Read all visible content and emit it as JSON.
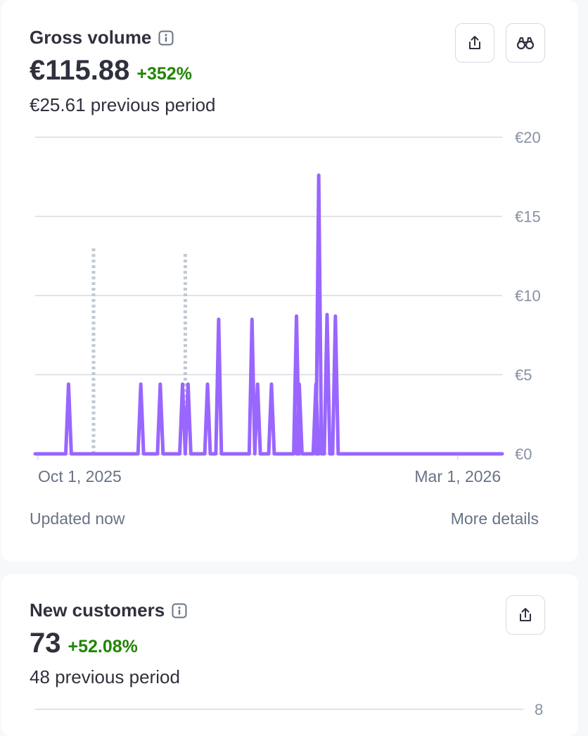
{
  "gross_volume": {
    "title": "Gross volume",
    "value": "€115.88",
    "delta": "+352%",
    "previous": "€25.61 previous period",
    "updated": "Updated now",
    "more_details": "More details",
    "icons": [
      "info-icon",
      "export-icon",
      "binoculars-icon"
    ]
  },
  "new_customers": {
    "title": "New customers",
    "value": "73",
    "delta": "+52.08%",
    "previous": "48 previous period",
    "icons": [
      "info-icon",
      "export-icon"
    ]
  },
  "colors": {
    "current_series": "#9966ff",
    "previous_series": "#c1c9d2",
    "positive_delta": "#228403",
    "gridline": "#d5dbe1",
    "axis_text": "#8792a2"
  },
  "chart_data": [
    {
      "type": "line",
      "x_start": "2025-09-30",
      "x_end": "2026-03-17",
      "y_unit": "€",
      "ylim": [
        0,
        20
      ],
      "y_ticks": [
        {
          "value": 20,
          "label": "€20"
        },
        {
          "value": 15,
          "label": "€15"
        },
        {
          "value": 10,
          "label": "€10"
        },
        {
          "value": 5,
          "label": "€5"
        },
        {
          "value": 0,
          "label": "€0"
        }
      ],
      "x_ticks": [
        {
          "date": "2025-10-01",
          "label": "Oct 1, 2025"
        },
        {
          "date": "2026-03-01",
          "label": "Mar 1, 2026"
        }
      ],
      "grid": true,
      "series": [
        {
          "kind": "current",
          "style": "solid",
          "points": [
            {
              "date": "2025-10-12",
              "y": 4.4
            },
            {
              "date": "2025-11-07",
              "y": 4.4
            },
            {
              "date": "2025-11-14",
              "y": 4.4
            },
            {
              "date": "2025-11-22",
              "y": 4.4
            },
            {
              "date": "2025-11-24",
              "y": 4.4
            },
            {
              "date": "2025-12-01",
              "y": 4.4
            },
            {
              "date": "2025-12-05",
              "y": 8.5
            },
            {
              "date": "2025-12-17",
              "y": 8.5
            },
            {
              "date": "2025-12-19",
              "y": 4.4
            },
            {
              "date": "2025-12-24",
              "y": 4.4
            },
            {
              "date": "2026-01-02",
              "y": 8.7
            },
            {
              "date": "2026-01-03",
              "y": 4.4
            },
            {
              "date": "2026-01-09",
              "y": 4.4
            },
            {
              "date": "2026-01-10",
              "y": 17.6
            },
            {
              "date": "2026-01-13",
              "y": 8.8
            },
            {
              "date": "2026-01-16",
              "y": 8.7
            }
          ]
        },
        {
          "kind": "previous",
          "style": "dotted",
          "points": [
            {
              "date": "2025-10-21",
              "y": 13.1
            },
            {
              "date": "2025-11-23",
              "y": 12.7
            }
          ]
        }
      ]
    },
    {
      "type": "line",
      "y_ticks": [
        {
          "value": 8,
          "label": "8"
        }
      ],
      "grid": true,
      "series": []
    }
  ]
}
